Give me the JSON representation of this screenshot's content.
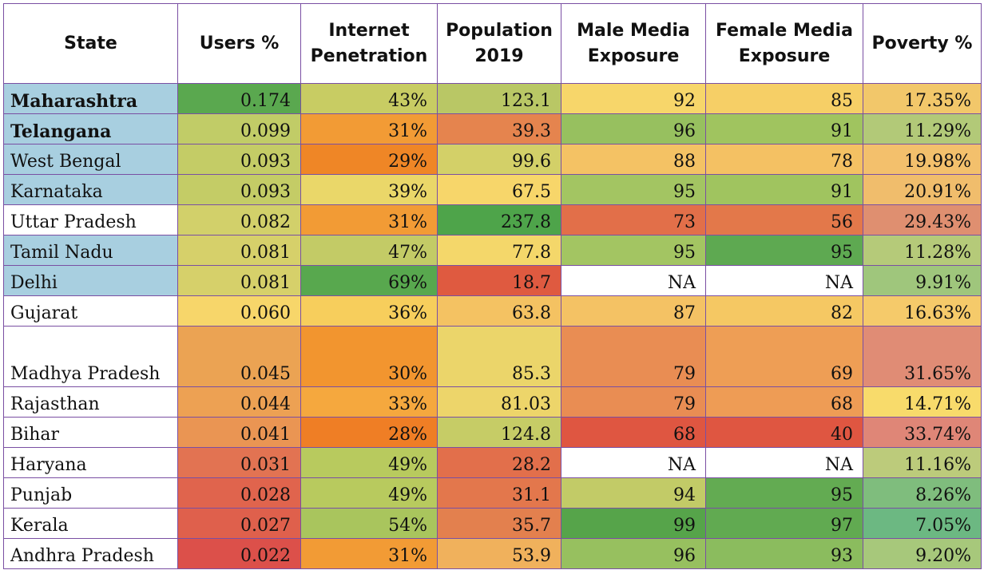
{
  "headers": [
    "State",
    "Users %",
    "Internet Penetration",
    "Population 2019",
    "Male Media Exposure",
    "Female Media Exposure",
    "Poverty %"
  ],
  "rows": [
    {
      "state": "Maharashtra",
      "users": "0.174",
      "internet": "43%",
      "population": "123.1",
      "male": "92",
      "female": "85",
      "poverty": "17.35%"
    },
    {
      "state": "Telangana",
      "users": "0.099",
      "internet": "31%",
      "population": "39.3",
      "male": "96",
      "female": "91",
      "poverty": "11.29%"
    },
    {
      "state": "West Bengal",
      "users": "0.093",
      "internet": "29%",
      "population": "99.6",
      "male": "88",
      "female": "78",
      "poverty": "19.98%"
    },
    {
      "state": "Karnataka",
      "users": "0.093",
      "internet": "39%",
      "population": "67.5",
      "male": "95",
      "female": "91",
      "poverty": "20.91%"
    },
    {
      "state": "Uttar Pradesh",
      "users": "0.082",
      "internet": "31%",
      "population": "237.8",
      "male": "73",
      "female": "56",
      "poverty": "29.43%"
    },
    {
      "state": "Tamil Nadu",
      "users": "0.081",
      "internet": "47%",
      "population": "77.8",
      "male": "95",
      "female": "95",
      "poverty": "11.28%"
    },
    {
      "state": "Delhi",
      "users": "0.081",
      "internet": "69%",
      "population": "18.7",
      "male": "NA",
      "female": "NA",
      "poverty": "9.91%"
    },
    {
      "state": "Gujarat",
      "users": "0.060",
      "internet": "36%",
      "population": "63.8",
      "male": "87",
      "female": "82",
      "poverty": "16.63%"
    },
    {
      "state": "Madhya Pradesh",
      "users": "0.045",
      "internet": "30%",
      "population": "85.3",
      "male": "79",
      "female": "69",
      "poverty": "31.65%"
    },
    {
      "state": "Rajasthan",
      "users": "0.044",
      "internet": "33%",
      "population": "81.03",
      "male": "79",
      "female": "68",
      "poverty": "14.71%"
    },
    {
      "state": "Bihar",
      "users": "0.041",
      "internet": "28%",
      "population": "124.8",
      "male": "68",
      "female": "40",
      "poverty": "33.74%"
    },
    {
      "state": "Haryana",
      "users": "0.031",
      "internet": "49%",
      "population": "28.2",
      "male": "NA",
      "female": "NA",
      "poverty": "11.16%"
    },
    {
      "state": "Punjab",
      "users": "0.028",
      "internet": "49%",
      "population": "31.1",
      "male": "94",
      "female": "95",
      "poverty": "8.26%"
    },
    {
      "state": "Kerala",
      "users": "0.027",
      "internet": "54%",
      "population": "35.7",
      "male": "99",
      "female": "97",
      "poverty": "7.05%"
    },
    {
      "state": "Andhra Pradesh",
      "users": "0.022",
      "internet": "31%",
      "population": "53.9",
      "male": "96",
      "female": "93",
      "poverty": "9.20%"
    }
  ],
  "colors": {
    "state_highlight": "#a8cfe0",
    "border": "#7a4fa3",
    "cells": [
      [
        "#a8cfe0",
        "#5aa84f",
        "#c8cc63",
        "#b9c765",
        "#f7d66a",
        "#f6cf66",
        "#f2c76a"
      ],
      [
        "#a8cfe0",
        "#c1cc67",
        "#f29b35",
        "#e5844e",
        "#97c05f",
        "#a0c45f",
        "#b2c978"
      ],
      [
        "#a8cfe0",
        "#c4cc66",
        "#ef8626",
        "#d3d068",
        "#f4c264",
        "#f4c163",
        "#f3c06c"
      ],
      [
        "#a8cfe0",
        "#c4cc66",
        "#ead769",
        "#f7d66a",
        "#a3c562",
        "#a0c45f",
        "#f0bd6c"
      ],
      [
        "#ffffff",
        "#d2d06a",
        "#f29b35",
        "#4ea44a",
        "#e26f49",
        "#e3784a",
        "#df8f70"
      ],
      [
        "#a8cfe0",
        "#d6d06a",
        "#c3cb66",
        "#f4d76a",
        "#a3c562",
        "#5ea951",
        "#b5ca79"
      ],
      [
        "#a8cfe0",
        "#d6d06a",
        "#58a84e",
        "#df5a40",
        "#ffffff",
        "#ffffff",
        "#9fc67c"
      ],
      [
        "#ffffff",
        "#f7d66a",
        "#f7ce5c",
        "#f4c262",
        "#f4c264",
        "#f5c863",
        "#f5ca6a"
      ],
      [
        "#ffffff",
        "#eba353",
        "#f2952f",
        "#ebd56a",
        "#e98d53",
        "#ee9e55",
        "#e08c75"
      ],
      [
        "#ffffff",
        "#eda153",
        "#f5a83e",
        "#edd56a",
        "#e98d53",
        "#ee9c55",
        "#f8db6b"
      ],
      [
        "#ffffff",
        "#ea9553",
        "#ef7e25",
        "#c6cc66",
        "#df5641",
        "#df5641",
        "#df8677"
      ],
      [
        "#ffffff",
        "#e27352",
        "#b8ca5e",
        "#e26f4b",
        "#ffffff",
        "#ffffff",
        "#bccb7b"
      ],
      [
        "#ffffff",
        "#e0644d",
        "#b8ca5e",
        "#e3774c",
        "#c2cb67",
        "#63ab52",
        "#7fbd7d"
      ],
      [
        "#ffffff",
        "#df604c",
        "#a9c55d",
        "#e3804e",
        "#56a44a",
        "#61aa51",
        "#6cb882"
      ],
      [
        "#ffffff",
        "#dc504a",
        "#f29b35",
        "#f0b15c",
        "#97c05f",
        "#8bbc5e",
        "#a7c87b"
      ]
    ]
  }
}
